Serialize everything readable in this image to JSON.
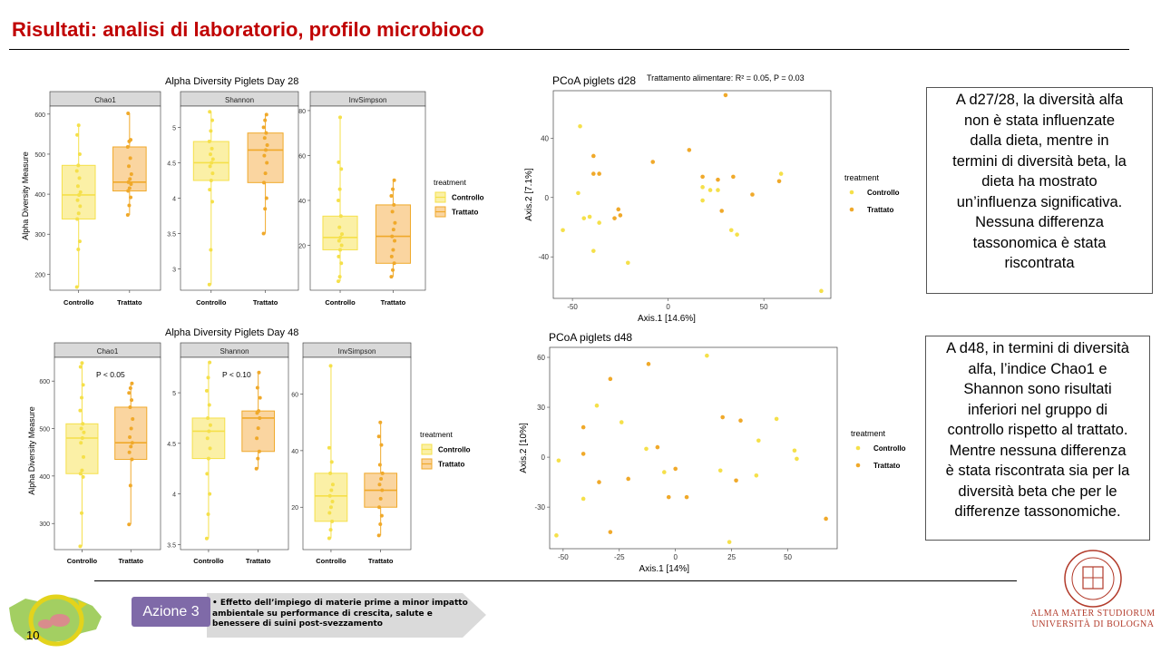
{
  "header": {
    "title": "Risultati: analisi di laboratorio, profilo microbioco"
  },
  "colors": {
    "controllo": "#f5e04a",
    "trattato": "#f0a92a",
    "controllo_fill": "#fbf0a6",
    "trattato_fill": "#fad5a0",
    "facet": "#d9d9d9",
    "title_red": "#c00000",
    "azione": "#7f6aa8"
  },
  "chart_data": [
    {
      "id": "alpha_d28",
      "type": "boxplot",
      "title": "Alpha Diversity Piglets Day 28",
      "ylabel": "Alpha Diversity Measure",
      "legend": {
        "title": "treatment",
        "entries": [
          "Controllo",
          "Trattato"
        ],
        "placement": "right"
      },
      "panels": [
        {
          "name": "Chao1",
          "ylim": [
            160,
            620
          ],
          "ticks": [
            200,
            300,
            400,
            500,
            600
          ],
          "annotation": "",
          "groups": [
            {
              "name": "Controllo",
              "min": 168,
              "q1": 338,
              "median": 398,
              "q3": 472,
              "max": 572,
              "points": [
                168,
                262,
                282,
                338,
                352,
                370,
                385,
                398,
                405,
                420,
                440,
                458,
                472,
                500,
                548,
                572
              ]
            },
            {
              "name": "Trattato",
              "min": 348,
              "q1": 408,
              "median": 430,
              "q3": 518,
              "max": 602,
              "points": [
                348,
                372,
                392,
                408,
                415,
                425,
                430,
                438,
                450,
                470,
                490,
                518,
                532,
                536,
                602
              ]
            }
          ]
        },
        {
          "name": "Shannon",
          "ylim": [
            2.7,
            5.3
          ],
          "ticks": [
            3.0,
            3.5,
            4.0,
            4.5,
            5.0
          ],
          "annotation": "",
          "groups": [
            {
              "name": "Controllo",
              "min": 2.78,
              "q1": 4.25,
              "median": 4.5,
              "q3": 4.8,
              "max": 5.22,
              "points": [
                2.78,
                3.27,
                3.95,
                4.12,
                4.25,
                4.35,
                4.45,
                4.5,
                4.55,
                4.62,
                4.7,
                4.8,
                4.95,
                5.1,
                5.22
              ]
            },
            {
              "name": "Trattato",
              "min": 3.5,
              "q1": 4.22,
              "median": 4.68,
              "q3": 4.92,
              "max": 5.18,
              "points": [
                3.5,
                3.85,
                4.0,
                4.22,
                4.35,
                4.5,
                4.6,
                4.68,
                4.75,
                4.85,
                4.92,
                5.0,
                5.1,
                5.18
              ]
            }
          ]
        },
        {
          "name": "InvSimpson",
          "ylim": [
            0,
            82
          ],
          "ticks": [
            20,
            40,
            60,
            80
          ],
          "annotation": "",
          "groups": [
            {
              "name": "Controllo",
              "min": 4,
              "q1": 18,
              "median": 23.5,
              "q3": 33,
              "max": 77,
              "points": [
                4,
                6,
                12,
                15,
                18,
                20,
                22,
                23.5,
                25,
                28,
                33,
                40,
                45,
                54,
                57,
                77
              ]
            },
            {
              "name": "Trattato",
              "min": 6,
              "q1": 12,
              "median": 24,
              "q3": 38,
              "max": 49,
              "points": [
                6,
                9,
                12,
                15,
                18,
                22,
                24,
                27,
                30,
                35,
                38,
                42,
                45,
                49
              ]
            }
          ]
        }
      ]
    },
    {
      "id": "alpha_d48",
      "type": "boxplot",
      "title": "Alpha Diversity Piglets Day 48",
      "ylabel": "Alpha Diversity Measure",
      "legend": {
        "title": "treatment",
        "entries": [
          "Controllo",
          "Trattato"
        ],
        "placement": "right"
      },
      "panels": [
        {
          "name": "Chao1",
          "ylim": [
            245,
            650
          ],
          "ticks": [
            300,
            400,
            500,
            600
          ],
          "annotation": "P < 0.05",
          "groups": [
            {
              "name": "Controllo",
              "min": 252,
              "q1": 405,
              "median": 480,
              "q3": 510,
              "max": 638,
              "points": [
                252,
                322,
                398,
                405,
                412,
                440,
                470,
                480,
                492,
                500,
                510,
                538,
                565,
                592,
                630,
                638
              ]
            },
            {
              "name": "Trattato",
              "min": 298,
              "q1": 435,
              "median": 470,
              "q3": 545,
              "max": 595,
              "points": [
                298,
                380,
                435,
                450,
                462,
                470,
                482,
                500,
                520,
                545,
                560,
                575,
                585,
                595
              ]
            }
          ]
        },
        {
          "name": "Shannon",
          "ylim": [
            3.45,
            5.35
          ],
          "ticks": [
            3.5,
            4.0,
            4.5,
            5.0
          ],
          "annotation": "P < 0.10",
          "groups": [
            {
              "name": "Controllo",
              "min": 3.56,
              "q1": 4.35,
              "median": 4.62,
              "q3": 4.75,
              "max": 5.3,
              "points": [
                3.56,
                3.8,
                4.0,
                4.2,
                4.35,
                4.45,
                4.55,
                4.62,
                4.68,
                4.75,
                4.88,
                5.02,
                5.15,
                5.3
              ]
            },
            {
              "name": "Trattato",
              "min": 4.25,
              "q1": 4.42,
              "median": 4.75,
              "q3": 4.82,
              "max": 5.2,
              "points": [
                4.25,
                4.35,
                4.42,
                4.55,
                4.65,
                4.75,
                4.8,
                4.82,
                4.95,
                5.05,
                5.2
              ]
            }
          ]
        },
        {
          "name": "InvSimpson",
          "ylim": [
            5,
            73
          ],
          "ticks": [
            20,
            40,
            60
          ],
          "annotation": "",
          "groups": [
            {
              "name": "Controllo",
              "min": 9,
              "q1": 15,
              "median": 24,
              "q3": 32,
              "max": 70,
              "points": [
                9,
                12,
                15,
                18,
                20,
                22,
                24,
                26,
                28,
                32,
                36,
                41,
                70
              ]
            },
            {
              "name": "Trattato",
              "min": 10,
              "q1": 20,
              "median": 26,
              "q3": 32,
              "max": 50,
              "points": [
                10,
                14,
                17,
                20,
                23,
                26,
                28,
                30,
                32,
                35,
                42,
                45,
                50
              ]
            }
          ]
        }
      ]
    },
    {
      "id": "pcoa_d28",
      "type": "scatter",
      "title": "PCoA piglets d28",
      "annotation": "Trattamento alimentare: R² = 0.05, P = 0.03",
      "xlabel": "Axis.1   [14.6%]",
      "ylabel": "Axis.2   [7.1%]",
      "xlim": [
        -60,
        85
      ],
      "ylim": [
        -68,
        72
      ],
      "xticks": [
        -50,
        0,
        50
      ],
      "yticks": [
        -40,
        0,
        40
      ],
      "legend": {
        "title": "treatment",
        "entries": [
          "Controllo",
          "Trattato"
        ],
        "placement": "right"
      },
      "series": [
        {
          "name": "Controllo",
          "points": [
            [
              -55,
              -22
            ],
            [
              -46,
              48
            ],
            [
              -47,
              3
            ],
            [
              -44,
              -14
            ],
            [
              -41,
              -13
            ],
            [
              -39,
              -36
            ],
            [
              -36,
              -17
            ],
            [
              -21,
              -44
            ],
            [
              18,
              7
            ],
            [
              18,
              -2
            ],
            [
              22,
              5
            ],
            [
              26,
              5
            ],
            [
              33,
              -22
            ],
            [
              36,
              -25
            ],
            [
              59,
              16
            ],
            [
              80,
              -63
            ]
          ]
        },
        {
          "name": "Trattato",
          "points": [
            [
              -39,
              16
            ],
            [
              -39,
              28
            ],
            [
              -36,
              16
            ],
            [
              -28,
              -14
            ],
            [
              -26,
              -8
            ],
            [
              -25,
              -12
            ],
            [
              -8,
              24
            ],
            [
              11,
              32
            ],
            [
              18,
              14
            ],
            [
              26,
              12
            ],
            [
              28,
              -9
            ],
            [
              30,
              69
            ],
            [
              34,
              14
            ],
            [
              44,
              2
            ],
            [
              58,
              11
            ]
          ]
        }
      ]
    },
    {
      "id": "pcoa_d48",
      "type": "scatter",
      "title": "PCoA piglets d48",
      "annotation": "",
      "xlabel": "Axis.1   [14%]",
      "ylabel": "Axis.2   [10%]",
      "xlim": [
        -56,
        72
      ],
      "ylim": [
        -55,
        66
      ],
      "xticks": [
        -50,
        -25,
        0,
        25,
        50
      ],
      "yticks": [
        -30,
        0,
        30,
        60
      ],
      "legend": {
        "title": "treatment",
        "entries": [
          "Controllo",
          "Trattato"
        ],
        "placement": "right"
      },
      "series": [
        {
          "name": "Controllo",
          "points": [
            [
              -53,
              -47
            ],
            [
              -52,
              -2
            ],
            [
              -41,
              -25
            ],
            [
              -35,
              31
            ],
            [
              -24,
              21
            ],
            [
              -13,
              5
            ],
            [
              -5,
              -9
            ],
            [
              14,
              61
            ],
            [
              20,
              -8
            ],
            [
              24,
              -51
            ],
            [
              36,
              -11
            ],
            [
              37,
              10
            ],
            [
              45,
              23
            ],
            [
              53,
              4
            ],
            [
              54,
              -1
            ]
          ]
        },
        {
          "name": "Trattato",
          "points": [
            [
              -41,
              18
            ],
            [
              -41,
              2
            ],
            [
              -34,
              -15
            ],
            [
              -29,
              47
            ],
            [
              -29,
              -45
            ],
            [
              -21,
              -13
            ],
            [
              -12,
              56
            ],
            [
              -8,
              6
            ],
            [
              -3,
              -24
            ],
            [
              0,
              -7
            ],
            [
              5,
              -24
            ],
            [
              21,
              24
            ],
            [
              27,
              -14
            ],
            [
              29,
              22
            ],
            [
              67,
              -37
            ]
          ]
        }
      ]
    }
  ],
  "text_box_1": {
    "lines": [
      "A d27/28, la diversità alfa",
      "non è stata influenzate",
      "dalla dieta, mentre in",
      "termini di diversità beta, la",
      "dieta ha mostrato",
      "un’influenza significativa.",
      "Nessuna differenza",
      "tassonomica è stata",
      "riscontrata"
    ]
  },
  "text_box_2": {
    "lines": [
      "A d48, in termini di diversità",
      "alfa, l’indice Chao1 e",
      "Shannon sono risultati",
      "inferiori nel gruppo di",
      "controllo rispetto al trattato.",
      "Mentre nessuna differenza",
      "è stata riscontrata sia per la",
      "diversità beta che per le",
      "differenze tassonomiche."
    ]
  },
  "footer": {
    "azione_label": "Azione 3",
    "azione_text": "• Effetto dell’impiego di materie prime a minor impatto ambientale su performance di crescita, salute e benessere di suini post-svezzamento",
    "page_number": "10",
    "logo_line1": "ALMA MATER STUDIORUM",
    "logo_line2": "UNIVERSITÀ DI BOLOGNA",
    "logo_icon": "university-seal-icon",
    "region_icon": "region-map-icon"
  }
}
